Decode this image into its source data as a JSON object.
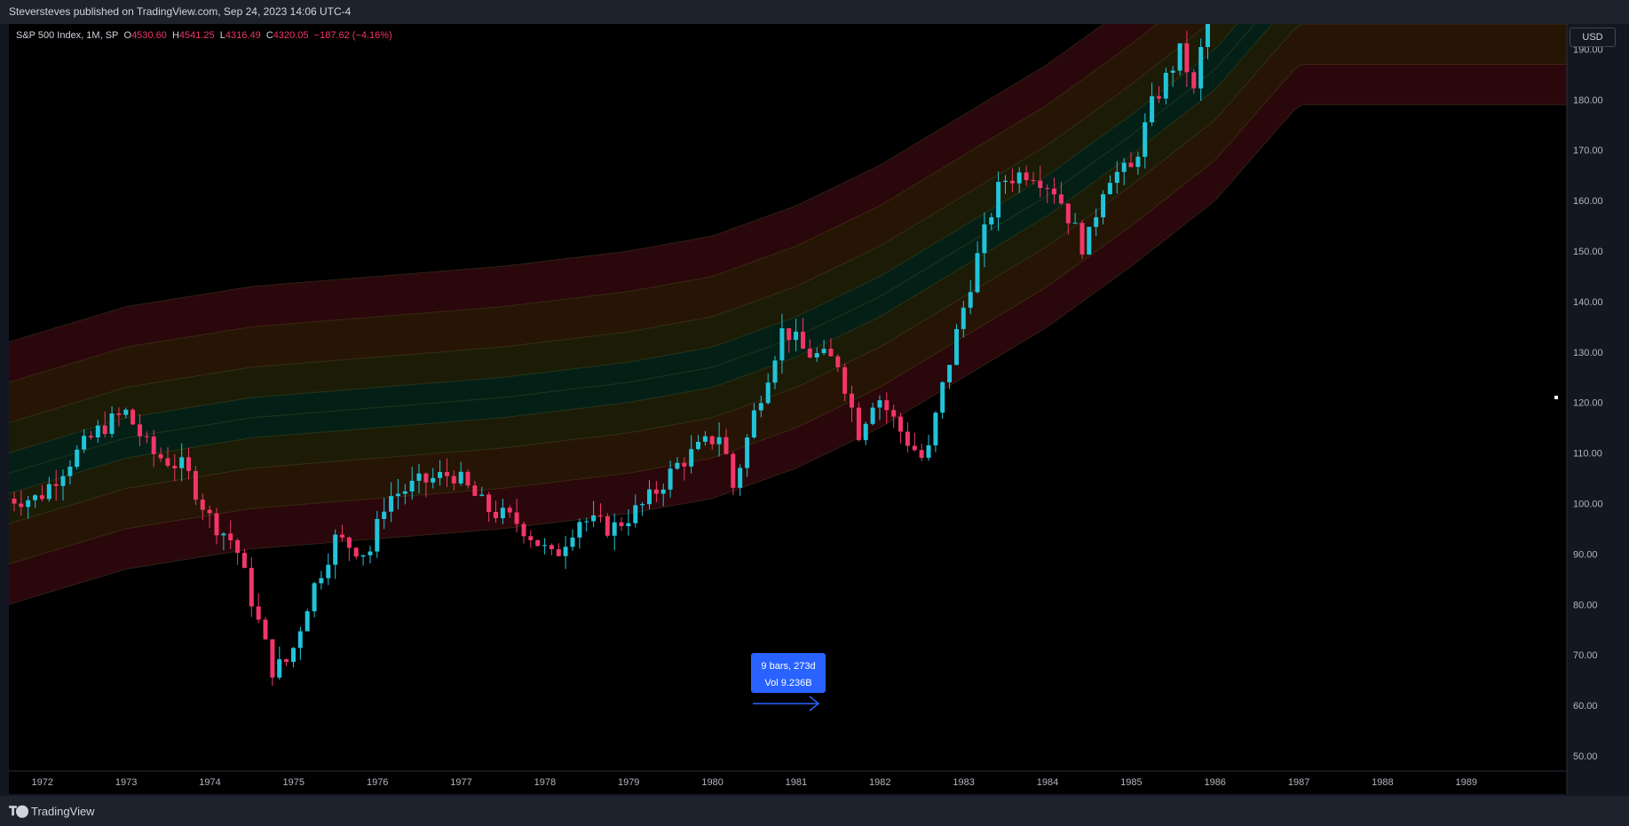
{
  "header": {
    "published": "Steversteves published on TradingView.com, Sep 24, 2023 14:06 UTC-4"
  },
  "legend": {
    "symbol": "S&P 500 Index, 1M, SP",
    "open_label": "O",
    "open": "4530.60",
    "high_label": "H",
    "high": "4541.25",
    "low_label": "L",
    "low": "4316.49",
    "close_label": "C",
    "close": "4320.05",
    "change": "−187.62 (−4.16%)"
  },
  "currency_button": "USD",
  "measure_tooltip": {
    "line1": "9 bars, 273d",
    "line2": "Vol 9.236B"
  },
  "footer": {
    "brand": "TradingView",
    "logo_icon": "tradingview-logo-icon"
  },
  "colors": {
    "up": "#22c3d8",
    "down": "#f23669",
    "background": "#000000",
    "measure": "#2962ff"
  },
  "chart_data": {
    "type": "candlestick",
    "y_ticks": [
      "190.00",
      "180.00",
      "170.00",
      "160.00",
      "150.00",
      "140.00",
      "130.00",
      "120.00",
      "110.00",
      "100.00",
      "90.00",
      "80.00",
      "70.00",
      "60.00",
      "50.00"
    ],
    "x_ticks": [
      "1972",
      "1973",
      "1974",
      "1975",
      "1976",
      "1977",
      "1978",
      "1979",
      "1980",
      "1981",
      "1982",
      "1983",
      "1984",
      "1985",
      "1986",
      "1987",
      "1988",
      "1989"
    ],
    "ylim": [
      47,
      195
    ],
    "xlim": [
      1971.6,
      1990.2
    ],
    "close_anchors": [
      [
        1971.95,
        101
      ],
      [
        1972.3,
        108
      ],
      [
        1972.7,
        115
      ],
      [
        1973.0,
        118
      ],
      [
        1973.3,
        110
      ],
      [
        1973.7,
        107
      ],
      [
        1974.0,
        97
      ],
      [
        1974.3,
        92
      ],
      [
        1974.55,
        78
      ],
      [
        1974.75,
        67
      ],
      [
        1974.95,
        69
      ],
      [
        1975.2,
        82
      ],
      [
        1975.5,
        93
      ],
      [
        1975.9,
        90
      ],
      [
        1976.1,
        101
      ],
      [
        1976.5,
        104
      ],
      [
        1976.9,
        106
      ],
      [
        1977.3,
        99
      ],
      [
        1977.7,
        96
      ],
      [
        1978.1,
        89
      ],
      [
        1978.4,
        97
      ],
      [
        1978.8,
        95
      ],
      [
        1979.2,
        100
      ],
      [
        1979.6,
        108
      ],
      [
        1980.1,
        114
      ],
      [
        1980.25,
        103
      ],
      [
        1980.5,
        118
      ],
      [
        1980.85,
        135
      ],
      [
        1981.1,
        130
      ],
      [
        1981.5,
        128
      ],
      [
        1981.75,
        114
      ],
      [
        1981.95,
        122
      ],
      [
        1982.3,
        113
      ],
      [
        1982.55,
        108
      ],
      [
        1982.7,
        120
      ],
      [
        1982.95,
        136
      ],
      [
        1983.2,
        151
      ],
      [
        1983.45,
        164
      ],
      [
        1983.8,
        166
      ],
      [
        1984.1,
        162
      ],
      [
        1984.45,
        150
      ],
      [
        1984.7,
        165
      ],
      [
        1985.0,
        166
      ],
      [
        1985.25,
        179
      ],
      [
        1985.6,
        190
      ],
      [
        1985.75,
        181
      ],
      [
        1985.88,
        195
      ]
    ],
    "bands": {
      "center": [
        [
          1971.6,
          106
        ],
        [
          1973,
          113
        ],
        [
          1974.5,
          117
        ],
        [
          1976,
          119
        ],
        [
          1977.5,
          121
        ],
        [
          1979,
          124
        ],
        [
          1980,
          127
        ],
        [
          1981,
          133
        ],
        [
          1982,
          141
        ],
        [
          1983,
          151
        ],
        [
          1984,
          161
        ],
        [
          1985,
          173
        ],
        [
          1986,
          186
        ],
        [
          1987,
          205
        ]
      ],
      "outer_upper_offset": 26,
      "outer_lower_offset": 26
    }
  }
}
